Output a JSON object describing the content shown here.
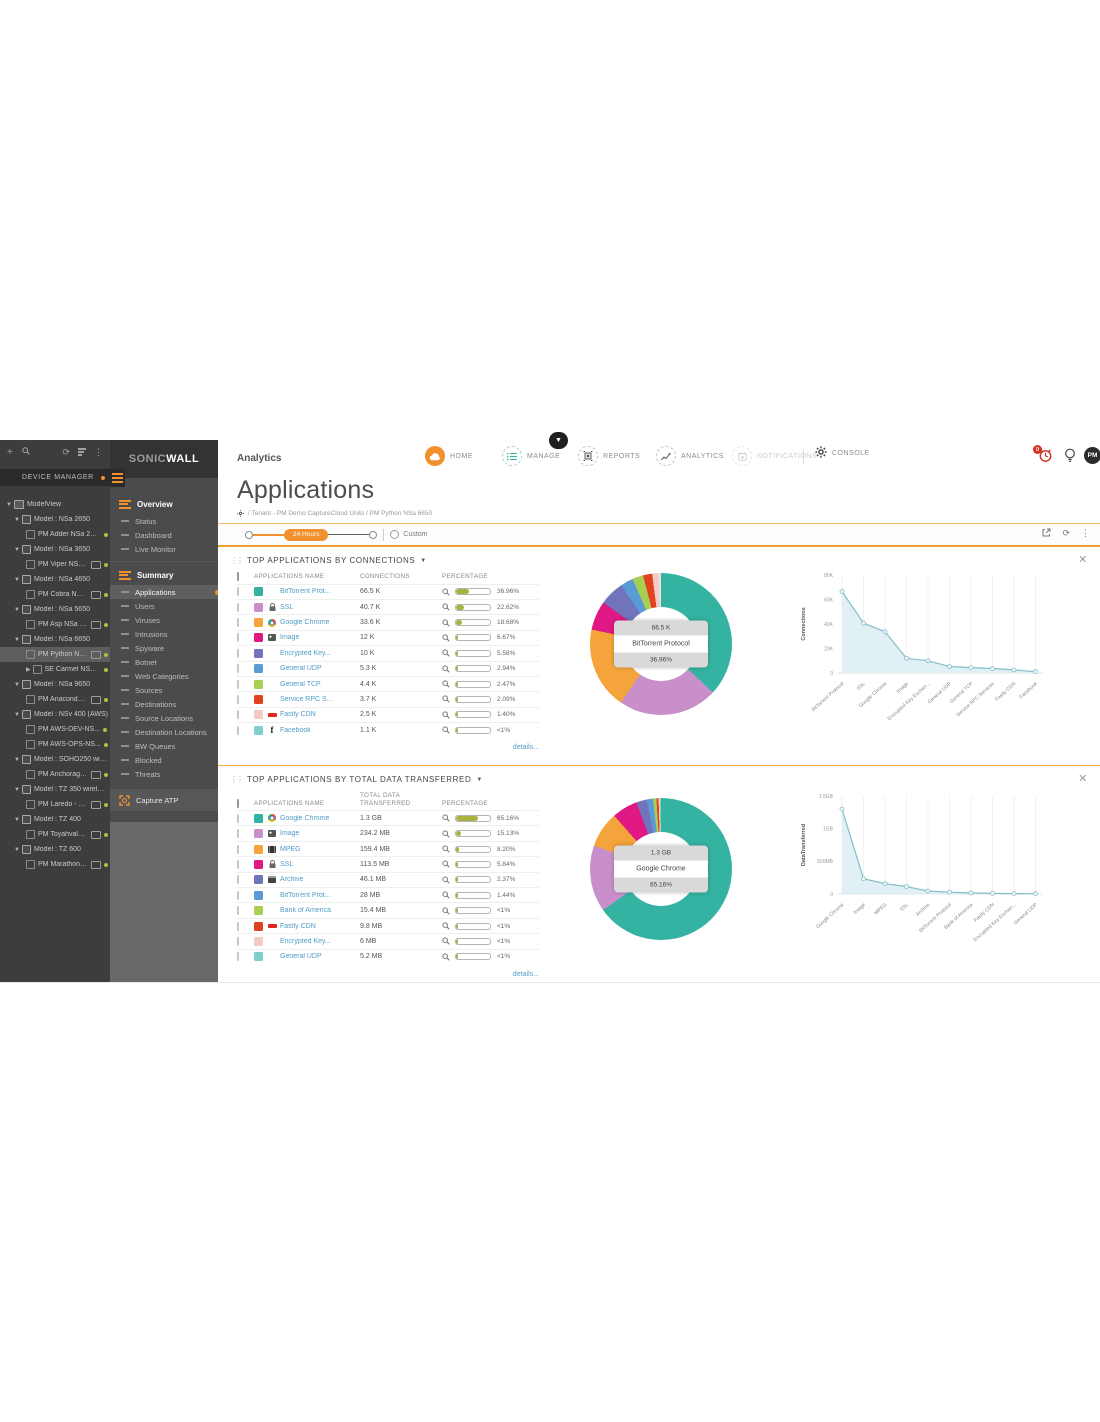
{
  "device_manager": {
    "title": "DEVICE MANAGER",
    "toolbar": [
      "add",
      "search",
      "refresh",
      "filter",
      "more"
    ],
    "tree": [
      {
        "type": "root",
        "label": "ModelView"
      },
      {
        "type": "model",
        "label": "Model : NSa 2650"
      },
      {
        "type": "device",
        "label": "PM Adder NSa 2650",
        "monitor": false
      },
      {
        "type": "model",
        "label": "Model : NSa 3650"
      },
      {
        "type": "device",
        "label": "PM Viper NSa 3...",
        "monitor": true
      },
      {
        "type": "model",
        "label": "Model : NSa 4650"
      },
      {
        "type": "device",
        "label": "PM Cobra NSa ...",
        "monitor": true
      },
      {
        "type": "model",
        "label": "Model : NSa 5650"
      },
      {
        "type": "device",
        "label": "PM Asp NSa 56...",
        "monitor": true
      },
      {
        "type": "model",
        "label": "Model : NSa 6650"
      },
      {
        "type": "device",
        "label": "PM Python NSa...",
        "monitor": true,
        "highlighted": true
      },
      {
        "type": "device",
        "label": "SE Carmel NSa6650",
        "monitor": false,
        "collapsed_caret": true
      },
      {
        "type": "model",
        "label": "Model : NSa 9650"
      },
      {
        "type": "device",
        "label": "PM Anaconda ...",
        "monitor": true
      },
      {
        "type": "model",
        "label": "Model : NSv 400 (AWS)"
      },
      {
        "type": "device",
        "label": "PM AWS-DEV-NS...",
        "monitor": false
      },
      {
        "type": "device",
        "label": "PM AWS-OPS-NS...",
        "monitor": false
      },
      {
        "type": "model",
        "label": "Model : SOHO250 wirele..."
      },
      {
        "type": "device",
        "label": "PM Anchorage ...",
        "monitor": true
      },
      {
        "type": "model",
        "label": "Model : TZ 350 wireless-..."
      },
      {
        "type": "device",
        "label": "PM Laredo - TZ...",
        "monitor": true
      },
      {
        "type": "model",
        "label": "Model : TZ 400"
      },
      {
        "type": "device",
        "label": "PM Toyahvale T...",
        "monitor": true
      },
      {
        "type": "model",
        "label": "Model : TZ 600"
      },
      {
        "type": "device",
        "label": "PM Marathon T...",
        "monitor": true
      }
    ]
  },
  "nav_sidebar": {
    "brand": {
      "sonic": "SONIC",
      "wall": "WALL"
    },
    "sections": [
      {
        "label": "Overview",
        "items": [
          {
            "label": "Status"
          },
          {
            "label": "Dashboard"
          },
          {
            "label": "Live Monitor"
          }
        ]
      },
      {
        "label": "Summary",
        "items": [
          {
            "label": "Applications",
            "active": true
          },
          {
            "label": "Users"
          },
          {
            "label": "Viruses"
          },
          {
            "label": "Intrusions"
          },
          {
            "label": "Spyware"
          },
          {
            "label": "Botnet"
          },
          {
            "label": "Web Categories"
          },
          {
            "label": "Sources"
          },
          {
            "label": "Destinations"
          },
          {
            "label": "Source Locations"
          },
          {
            "label": "Destination Locations"
          },
          {
            "label": "BW Queues"
          },
          {
            "label": "Blocked"
          },
          {
            "label": "Threats"
          }
        ]
      }
    ],
    "capture_atp": "Capture ATP"
  },
  "topnav": {
    "app_label": "Analytics",
    "items": [
      {
        "label": "HOME",
        "active": true
      },
      {
        "label": "MANAGE"
      },
      {
        "label": "REPORTS"
      },
      {
        "label": "ANALYTICS"
      },
      {
        "label": "NOTIFICATIONS",
        "disabled": true
      },
      {
        "label": "CONSOLE"
      }
    ],
    "alarm_badge": "0",
    "avatar": "PM"
  },
  "page": {
    "title": "Applications",
    "breadcrumb": "/ Tenant - PM Demo CaptureCloud Units / PM Python NSa 6650",
    "time_slider": {
      "selected": "24 Hours",
      "custom_label": "Custom"
    }
  },
  "panels": [
    {
      "title": "TOP APPLICATIONS BY CONNECTIONS",
      "columns": [
        "APPLICATIONS NAME",
        "CONNECTIONS",
        "PERCENTAGE"
      ],
      "rows": [
        {
          "name": "BitTorrent Prot...",
          "icon": "none",
          "value": "66.5 K",
          "pct_label": "36.96%",
          "pct": 37,
          "color": "#35b3a2"
        },
        {
          "name": "SSL",
          "icon": "lock",
          "value": "40.7 K",
          "pct_label": "22.62%",
          "pct": 23,
          "color": "#c98fcb"
        },
        {
          "name": "Google Chrome",
          "icon": "chrome",
          "value": "33.6 K",
          "pct_label": "18.68%",
          "pct": 19,
          "color": "#f4a43b"
        },
        {
          "name": "Image",
          "icon": "image",
          "value": "12 K",
          "pct_label": "6.67%",
          "pct": 7,
          "color": "#e01884"
        },
        {
          "name": "Encrypted Key...",
          "icon": "none",
          "value": "10 K",
          "pct_label": "5.58%",
          "pct": 6,
          "color": "#6f74bb"
        },
        {
          "name": "General UDP",
          "icon": "none",
          "value": "5.3 K",
          "pct_label": "2.94%",
          "pct": 3,
          "color": "#5b9bd5"
        },
        {
          "name": "General TCP",
          "icon": "none",
          "value": "4.4 K",
          "pct_label": "2.47%",
          "pct": 3,
          "color": "#a9cf52"
        },
        {
          "name": "Service RPC S...",
          "icon": "none",
          "value": "3.7 K",
          "pct_label": "2.09%",
          "pct": 2,
          "color": "#e2411f"
        },
        {
          "name": "Fastly CDN",
          "icon": "fastly",
          "value": "2.5 K",
          "pct_label": "1.40%",
          "pct": 2,
          "color": "#f3cac4"
        },
        {
          "name": "Facebook",
          "icon": "facebook",
          "value": "1.1 K",
          "pct_label": "<1%",
          "pct": 1,
          "color": "#7fd0cc"
        }
      ],
      "details_label": "details...",
      "donut": {
        "value": "66.5 K",
        "name": "BitTorrent Protocol",
        "pct": "36.96%"
      }
    },
    {
      "title": "TOP APPLICATIONS BY TOTAL DATA TRANSFERRED",
      "columns": [
        "APPLICATIONS NAME",
        "TOTAL DATA TRANSFERRED",
        "PERCENTAGE"
      ],
      "rows": [
        {
          "name": "Google Chrome",
          "icon": "chrome",
          "value": "1.3 GB",
          "pct_label": "65.16%",
          "pct": 65,
          "color": "#35b3a2"
        },
        {
          "name": "Image",
          "icon": "image",
          "value": "234.2 MB",
          "pct_label": "15.13%",
          "pct": 15,
          "color": "#c98fcb"
        },
        {
          "name": "MPEG",
          "icon": "film",
          "value": "159.4 MB",
          "pct_label": "8.20%",
          "pct": 8,
          "color": "#f4a43b"
        },
        {
          "name": "SSL",
          "icon": "lock",
          "value": "113.5 MB",
          "pct_label": "5.84%",
          "pct": 6,
          "color": "#e01884"
        },
        {
          "name": "Archive",
          "icon": "archive",
          "value": "46.1 MB",
          "pct_label": "2.37%",
          "pct": 2,
          "color": "#6f74bb"
        },
        {
          "name": "BitTorrent Prot...",
          "icon": "none",
          "value": "28 MB",
          "pct_label": "1.44%",
          "pct": 1,
          "color": "#5b9bd5"
        },
        {
          "name": "Bank of America",
          "icon": "none",
          "value": "15.4 MB",
          "pct_label": "<1%",
          "pct": 1,
          "color": "#a9cf52"
        },
        {
          "name": "Fastly CDN",
          "icon": "fastly",
          "value": "9.8 MB",
          "pct_label": "<1%",
          "pct": 1,
          "color": "#e2411f"
        },
        {
          "name": "Encrypted Key...",
          "icon": "none",
          "value": "6 MB",
          "pct_label": "<1%",
          "pct": 1,
          "color": "#f3cac4"
        },
        {
          "name": "General UDP",
          "icon": "none",
          "value": "5.2 MB",
          "pct_label": "<1%",
          "pct": 1,
          "color": "#7fd0cc"
        }
      ],
      "details_label": "details...",
      "donut": {
        "value": "1.3 GB",
        "name": "Google Chrome",
        "pct": "65.16%"
      }
    }
  ],
  "chart_data": [
    {
      "type": "pie",
      "title": "Top applications by connections (donut)",
      "slices": [
        {
          "name": "BitTorrent Protocol",
          "pct": 36.96,
          "color": "#35b3a2"
        },
        {
          "name": "SSL",
          "pct": 22.62,
          "color": "#c98fcb"
        },
        {
          "name": "Google Chrome",
          "pct": 18.68,
          "color": "#f4a43b"
        },
        {
          "name": "Image",
          "pct": 6.67,
          "color": "#e01884"
        },
        {
          "name": "Encrypted Key Exchange",
          "pct": 5.58,
          "color": "#6f74bb"
        },
        {
          "name": "General UDP",
          "pct": 2.94,
          "color": "#5b9bd5"
        },
        {
          "name": "General TCP",
          "pct": 2.47,
          "color": "#a9cf52"
        },
        {
          "name": "Service RPC Services",
          "pct": 2.09,
          "color": "#e2411f"
        },
        {
          "name": "Fastly CDN",
          "pct": 1.4,
          "color": "#f3cac4"
        },
        {
          "name": "Facebook",
          "pct": 0.59,
          "color": "#e9e2da"
        }
      ]
    },
    {
      "type": "area",
      "title": "Connections by application",
      "categories": [
        "BitTorrent Protocol",
        "SSL",
        "Google Chrome",
        "Image",
        "Encrypted Key Exchan...",
        "General UDP",
        "General TCP",
        "Service RPC Services",
        "Fastly CDN",
        "Facebook"
      ],
      "values": [
        66.5,
        40.7,
        33.6,
        12,
        10,
        5.3,
        4.4,
        3.7,
        2.5,
        1.1
      ],
      "ylabel": "Connections",
      "ymax": 80,
      "yticks": [
        {
          "v": 0,
          "label": "0"
        },
        {
          "v": 20,
          "label": "20K"
        },
        {
          "v": 40,
          "label": "40K"
        },
        {
          "v": 60,
          "label": "60K"
        },
        {
          "v": 80,
          "label": "80K"
        }
      ],
      "grid": "vertical",
      "legend": "none"
    },
    {
      "type": "pie",
      "title": "Top applications by total data transferred (donut)",
      "slices": [
        {
          "name": "Google Chrome",
          "pct": 65.16,
          "color": "#35b3a2"
        },
        {
          "name": "Image",
          "pct": 15.13,
          "color": "#c98fcb"
        },
        {
          "name": "MPEG",
          "pct": 8.2,
          "color": "#f4a43b"
        },
        {
          "name": "SSL",
          "pct": 5.84,
          "color": "#e01884"
        },
        {
          "name": "Archive",
          "pct": 2.37,
          "color": "#6f74bb"
        },
        {
          "name": "BitTorrent Protocol",
          "pct": 1.44,
          "color": "#5b9bd5"
        },
        {
          "name": "Bank of America",
          "pct": 0.77,
          "color": "#a9cf52"
        },
        {
          "name": "Fastly CDN",
          "pct": 0.49,
          "color": "#e2411f"
        },
        {
          "name": "Encrypted Key Exchange",
          "pct": 0.3,
          "color": "#f3cac4"
        },
        {
          "name": "General UDP",
          "pct": 0.26,
          "color": "#7fd0cc"
        }
      ]
    },
    {
      "type": "area",
      "title": "Data transferred by application",
      "categories": [
        "Google Chrome",
        "Image",
        "MPEG",
        "SSL",
        "Archive",
        "BitTorrent Protocol",
        "Bank of America",
        "Fastly CDN",
        "Encrypted Key Exchan...",
        "General UDP"
      ],
      "values": [
        1300,
        234.2,
        159.4,
        113.5,
        46.1,
        28,
        15.4,
        9.8,
        6,
        5.2
      ],
      "ylabel": "DataTransferred",
      "ymax": 1500,
      "yticks": [
        {
          "v": 0,
          "label": "0"
        },
        {
          "v": 500,
          "label": "500MB"
        },
        {
          "v": 1000,
          "label": "1GB"
        },
        {
          "v": 1500,
          "label": "1.5GB"
        }
      ],
      "grid": "vertical",
      "legend": "none"
    }
  ]
}
